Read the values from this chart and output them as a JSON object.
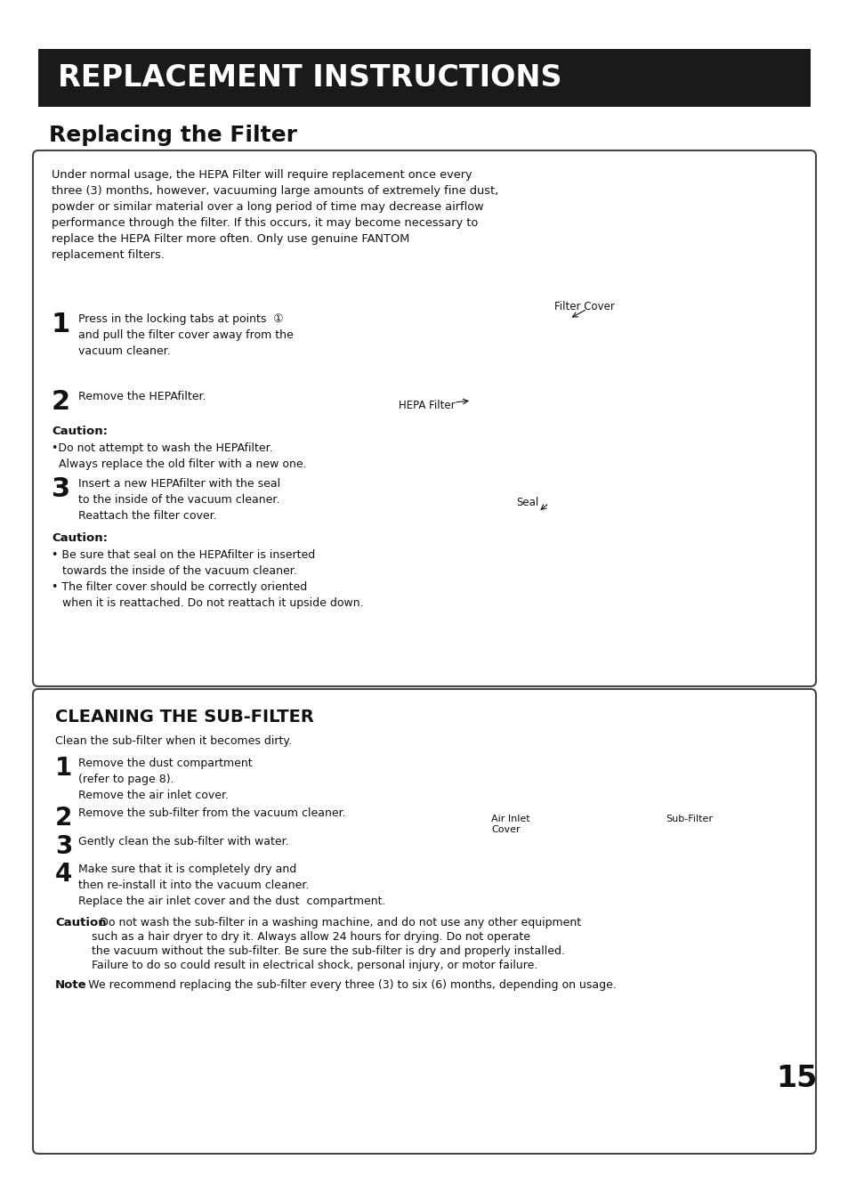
{
  "bg_color": "#ffffff",
  "title_bar_text": "REPLACEMENT INSTRUCTIONS",
  "title_bar_bg": "#1a1a1a",
  "title_bar_fg": "#ffffff",
  "section1_title": "Replacing the Filter",
  "section1_intro": "Under normal usage, the HEPA Filter will require replacement once every\nthree (3) months, however, vacuuming large amounts of extremely fine dust,\npowder or similar material over a long period of time may decrease airflow\nperformance through the filter. If this occurs, it may become necessary to\nreplace the HEPA Filter more often. Only use genuine FANTOM\nreplacement filters.",
  "step1_text": "Press in the locking tabs at points  ①\nand pull the filter cover away from the\nvacuum cleaner.",
  "step2_text": "Remove the HEPAfilter.",
  "caution1_text": "•Do not attempt to wash the HEPAfilter.\n  Always replace the old filter with a new one.",
  "step3_text": "Insert a new HEPAfilter with the seal\nto the inside of the vacuum cleaner.\nReattach the filter cover.",
  "caution2_text": "• Be sure that seal on the HEPAfilter is inserted\n   towards the inside of the vacuum cleaner.\n• The filter cover should be correctly oriented\n   when it is reattached. Do not reattach it upside down.",
  "label_filter_cover": "Filter Cover",
  "label_hepa_filter": "HEPA Filter",
  "label_seal": "Seal",
  "section2_title": "CLEANING THE SUB-FILTER",
  "section2_intro": "Clean the sub-filter when it becomes dirty.",
  "sub1_text": "Remove the dust compartment\n(refer to page 8).\nRemove the air inlet cover.",
  "sub2_text": "Remove the sub-filter from the vacuum cleaner.",
  "sub3_text": "Gently clean the sub-filter with water.",
  "sub4_text": "Make sure that it is completely dry and\nthen re-install it into the vacuum cleaner.\nReplace the air inlet cover and the dust  compartment.",
  "sub_caution_text": "Do not wash the sub-filter in a washing machine, and do not use any other equipment\n        such as a hair dryer to dry it. Always allow 24 hours for drying. Do not operate\n        the vacuum without the sub-filter. Be sure the sub-filter is dry and properly installed.\n        Failure to do so could result in electrical shock, personal injury, or motor failure.",
  "sub_note_text": "We recommend replacing the sub-filter every three (3) to six (6) months, depending on usage.",
  "label_air_inlet": "Air Inlet\nCover",
  "label_sub_filter": "Sub-Filter",
  "page_number": "15"
}
